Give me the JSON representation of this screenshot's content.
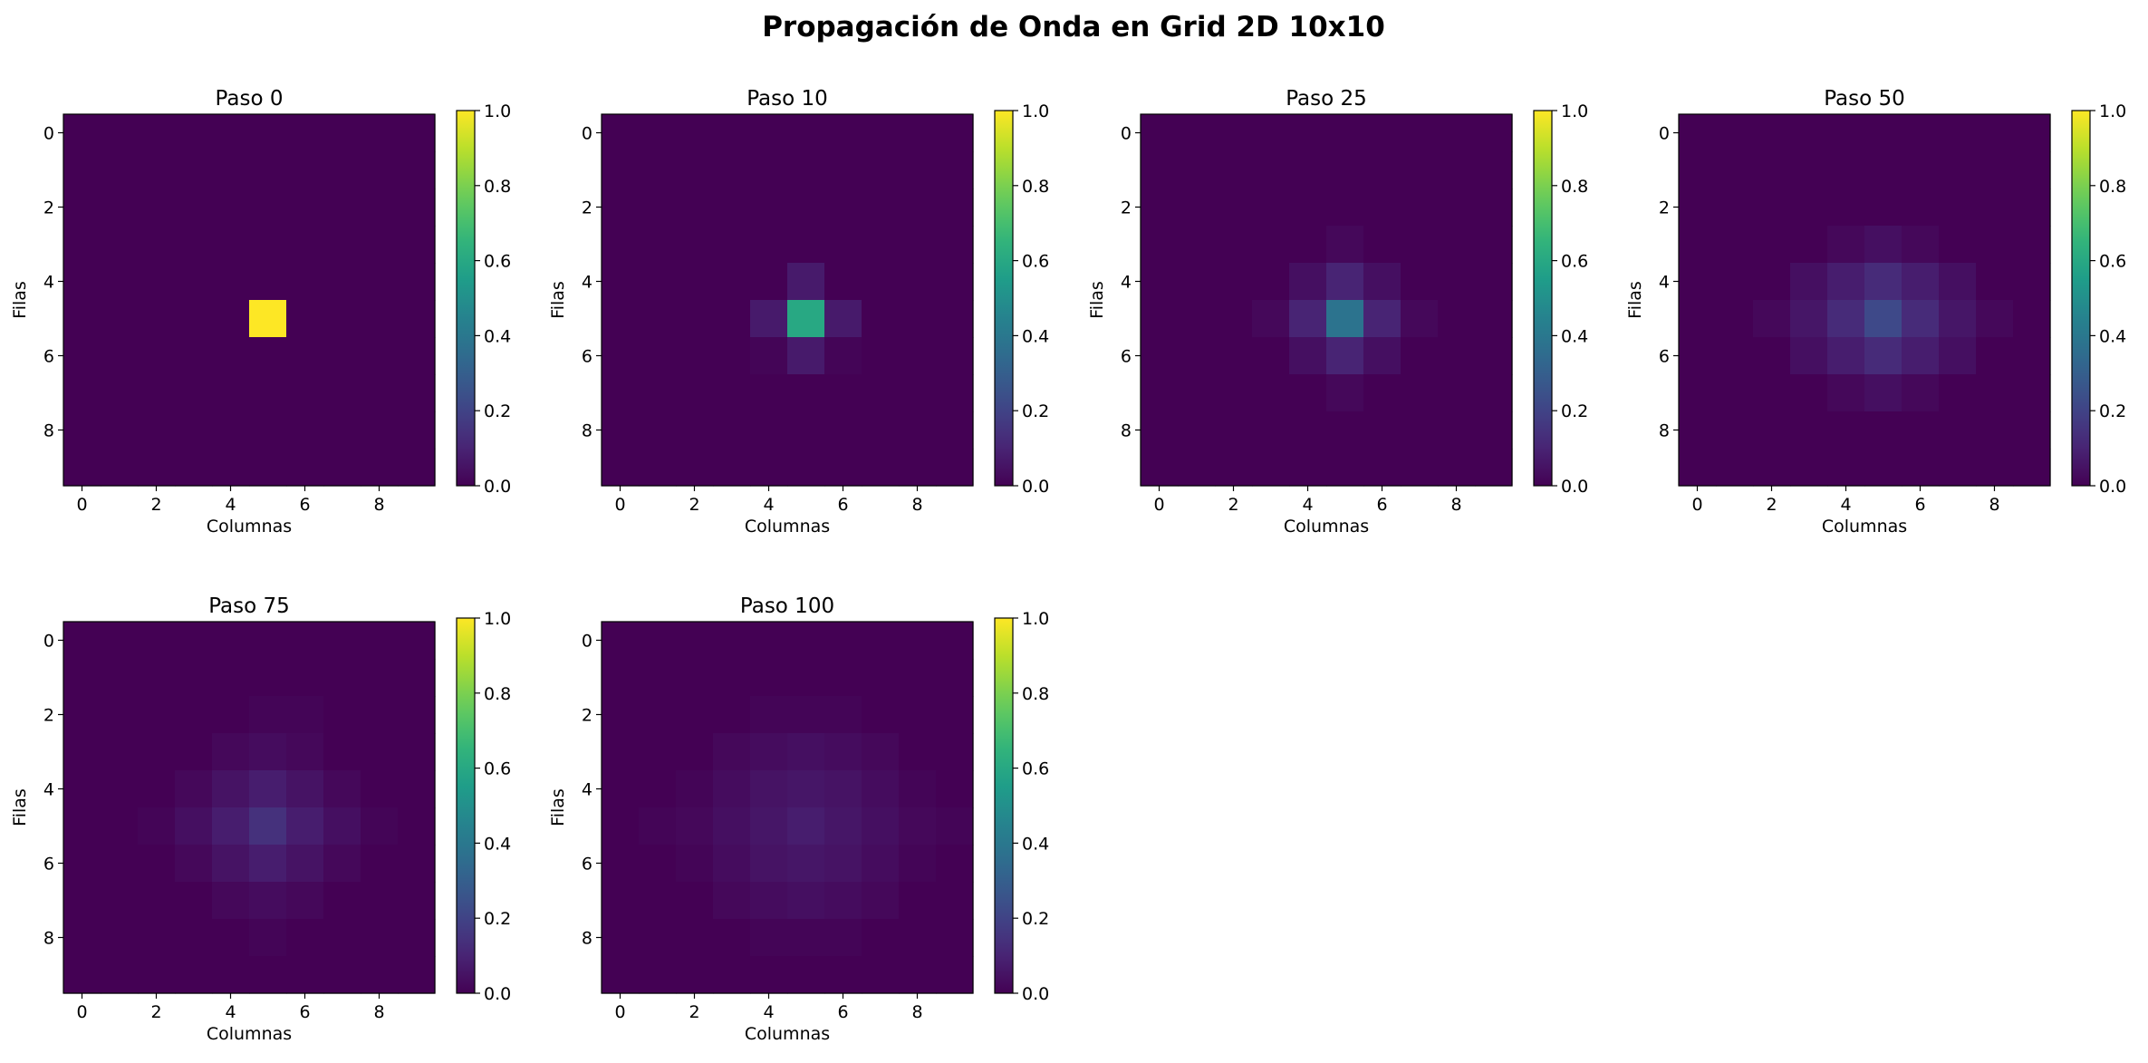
{
  "figure_title": "Propagación de Onda en Grid 2D 10x10",
  "colorbar": {
    "colormap": "viridis",
    "min": 0.0,
    "max": 1.0,
    "ticks": [
      "0.0",
      "0.2",
      "0.4",
      "0.6",
      "0.8",
      "1.0"
    ]
  },
  "chart_data": [
    {
      "type": "heatmap",
      "title": "Paso 0",
      "xlabel": "Columnas",
      "ylabel": "Filas",
      "xticks": [
        "0",
        "2",
        "4",
        "6",
        "8"
      ],
      "yticks": [
        "0",
        "2",
        "4",
        "6",
        "8"
      ],
      "values": [
        [
          0,
          0,
          0,
          0,
          0,
          0,
          0,
          0,
          0,
          0
        ],
        [
          0,
          0,
          0,
          0,
          0,
          0,
          0,
          0,
          0,
          0
        ],
        [
          0,
          0,
          0,
          0,
          0,
          0,
          0,
          0,
          0,
          0
        ],
        [
          0,
          0,
          0,
          0,
          0,
          0,
          0,
          0,
          0,
          0
        ],
        [
          0,
          0,
          0,
          0,
          0,
          0,
          0,
          0,
          0,
          0
        ],
        [
          0,
          0,
          0,
          0,
          0,
          1,
          0,
          0,
          0,
          0
        ],
        [
          0,
          0,
          0,
          0,
          0,
          0,
          0,
          0,
          0,
          0
        ],
        [
          0,
          0,
          0,
          0,
          0,
          0,
          0,
          0,
          0,
          0
        ],
        [
          0,
          0,
          0,
          0,
          0,
          0,
          0,
          0,
          0,
          0
        ],
        [
          0,
          0,
          0,
          0,
          0,
          0,
          0,
          0,
          0,
          0
        ]
      ]
    },
    {
      "type": "heatmap",
      "title": "Paso 10",
      "xlabel": "Columnas",
      "ylabel": "Filas",
      "xticks": [
        "0",
        "2",
        "4",
        "6",
        "8"
      ],
      "yticks": [
        "0",
        "2",
        "4",
        "6",
        "8"
      ],
      "values": [
        [
          0,
          0,
          0,
          0,
          0,
          0,
          0,
          0,
          0,
          0
        ],
        [
          0,
          0,
          0,
          0,
          0,
          0,
          0,
          0,
          0,
          0
        ],
        [
          0,
          0,
          0,
          0,
          0,
          0,
          0,
          0,
          0,
          0
        ],
        [
          0,
          0,
          0,
          0,
          0,
          0,
          0,
          0,
          0,
          0
        ],
        [
          0,
          0,
          0,
          0,
          0,
          0.07,
          0,
          0,
          0,
          0
        ],
        [
          0,
          0,
          0,
          0,
          0.07,
          0.6,
          0.07,
          0,
          0,
          0
        ],
        [
          0,
          0,
          0,
          0,
          0.01,
          0.07,
          0.01,
          0,
          0,
          0
        ],
        [
          0,
          0,
          0,
          0,
          0,
          0,
          0,
          0,
          0,
          0
        ],
        [
          0,
          0,
          0,
          0,
          0,
          0,
          0,
          0,
          0,
          0
        ],
        [
          0,
          0,
          0,
          0,
          0,
          0,
          0,
          0,
          0,
          0
        ]
      ]
    },
    {
      "type": "heatmap",
      "title": "Paso 25",
      "xlabel": "Columnas",
      "ylabel": "Filas",
      "xticks": [
        "0",
        "2",
        "4",
        "6",
        "8"
      ],
      "yticks": [
        "0",
        "2",
        "4",
        "6",
        "8"
      ],
      "values": [
        [
          0,
          0,
          0,
          0,
          0,
          0,
          0,
          0,
          0,
          0
        ],
        [
          0,
          0,
          0,
          0,
          0,
          0,
          0,
          0,
          0,
          0
        ],
        [
          0,
          0,
          0,
          0,
          0,
          0,
          0,
          0,
          0,
          0
        ],
        [
          0,
          0,
          0,
          0,
          0,
          0.02,
          0,
          0,
          0,
          0
        ],
        [
          0,
          0,
          0,
          0,
          0.04,
          0.1,
          0.04,
          0,
          0,
          0
        ],
        [
          0,
          0,
          0,
          0.02,
          0.1,
          0.38,
          0.1,
          0.02,
          0,
          0
        ],
        [
          0,
          0,
          0,
          0,
          0.04,
          0.1,
          0.04,
          0,
          0,
          0
        ],
        [
          0,
          0,
          0,
          0,
          0,
          0.02,
          0,
          0,
          0,
          0
        ],
        [
          0,
          0,
          0,
          0,
          0,
          0,
          0,
          0,
          0,
          0
        ],
        [
          0,
          0,
          0,
          0,
          0,
          0,
          0,
          0,
          0,
          0
        ]
      ]
    },
    {
      "type": "heatmap",
      "title": "Paso 50",
      "xlabel": "Columnas",
      "ylabel": "Filas",
      "xticks": [
        "0",
        "2",
        "4",
        "6",
        "8"
      ],
      "yticks": [
        "0",
        "2",
        "4",
        "6",
        "8"
      ],
      "values": [
        [
          0,
          0,
          0,
          0,
          0,
          0,
          0,
          0,
          0,
          0
        ],
        [
          0,
          0,
          0,
          0,
          0,
          0,
          0,
          0,
          0,
          0
        ],
        [
          0,
          0,
          0,
          0,
          0,
          0,
          0,
          0,
          0,
          0
        ],
        [
          0,
          0,
          0,
          0,
          0.02,
          0.04,
          0.02,
          0,
          0,
          0
        ],
        [
          0,
          0,
          0,
          0.04,
          0.08,
          0.12,
          0.08,
          0.04,
          0,
          0
        ],
        [
          0,
          0,
          0.02,
          0.06,
          0.12,
          0.22,
          0.12,
          0.06,
          0.02,
          0
        ],
        [
          0,
          0,
          0,
          0.04,
          0.08,
          0.12,
          0.08,
          0.04,
          0,
          0
        ],
        [
          0,
          0,
          0,
          0,
          0.02,
          0.04,
          0.02,
          0,
          0,
          0
        ],
        [
          0,
          0,
          0,
          0,
          0,
          0,
          0,
          0,
          0,
          0
        ],
        [
          0,
          0,
          0,
          0,
          0,
          0,
          0,
          0,
          0,
          0
        ]
      ]
    },
    {
      "type": "heatmap",
      "title": "Paso 75",
      "xlabel": "Columnas",
      "ylabel": "Filas",
      "xticks": [
        "0",
        "2",
        "4",
        "6",
        "8"
      ],
      "yticks": [
        "0",
        "2",
        "4",
        "6",
        "8"
      ],
      "values": [
        [
          0,
          0,
          0,
          0,
          0,
          0,
          0,
          0,
          0,
          0
        ],
        [
          0,
          0,
          0,
          0,
          0,
          0,
          0,
          0,
          0,
          0
        ],
        [
          0,
          0,
          0,
          0,
          0,
          0.01,
          0.01,
          0,
          0,
          0
        ],
        [
          0,
          0,
          0,
          0,
          0.02,
          0.03,
          0.02,
          0,
          0,
          0
        ],
        [
          0,
          0,
          0,
          0.02,
          0.05,
          0.08,
          0.05,
          0.02,
          0,
          0
        ],
        [
          0,
          0,
          0.01,
          0.04,
          0.08,
          0.14,
          0.08,
          0.04,
          0.01,
          0
        ],
        [
          0,
          0,
          0,
          0.02,
          0.05,
          0.08,
          0.05,
          0.02,
          0,
          0
        ],
        [
          0,
          0,
          0,
          0,
          0.02,
          0.03,
          0.02,
          0,
          0,
          0
        ],
        [
          0,
          0,
          0,
          0,
          0,
          0.01,
          0,
          0,
          0,
          0
        ],
        [
          0,
          0,
          0,
          0,
          0,
          0,
          0,
          0,
          0,
          0
        ]
      ]
    },
    {
      "type": "heatmap",
      "title": "Paso 100",
      "xlabel": "Columnas",
      "ylabel": "Filas",
      "xticks": [
        "0",
        "2",
        "4",
        "6",
        "8"
      ],
      "yticks": [
        "0",
        "2",
        "4",
        "6",
        "8"
      ],
      "values": [
        [
          0,
          0,
          0,
          0,
          0,
          0,
          0,
          0,
          0,
          0
        ],
        [
          0,
          0,
          0,
          0,
          0,
          0,
          0,
          0,
          0,
          0
        ],
        [
          0,
          0,
          0,
          0,
          0.01,
          0.01,
          0.01,
          0,
          0,
          0
        ],
        [
          0,
          0,
          0,
          0.02,
          0.03,
          0.04,
          0.03,
          0.02,
          0,
          0
        ],
        [
          0,
          0,
          0.01,
          0.03,
          0.05,
          0.06,
          0.05,
          0.03,
          0.01,
          0
        ],
        [
          0,
          0.01,
          0.02,
          0.04,
          0.06,
          0.08,
          0.06,
          0.04,
          0.02,
          0.01
        ],
        [
          0,
          0,
          0.01,
          0.03,
          0.05,
          0.06,
          0.05,
          0.03,
          0.01,
          0
        ],
        [
          0,
          0,
          0,
          0.02,
          0.03,
          0.04,
          0.03,
          0.02,
          0,
          0
        ],
        [
          0,
          0,
          0,
          0,
          0.01,
          0.01,
          0.01,
          0,
          0,
          0
        ],
        [
          0,
          0,
          0,
          0,
          0,
          0,
          0,
          0,
          0,
          0
        ]
      ]
    }
  ]
}
